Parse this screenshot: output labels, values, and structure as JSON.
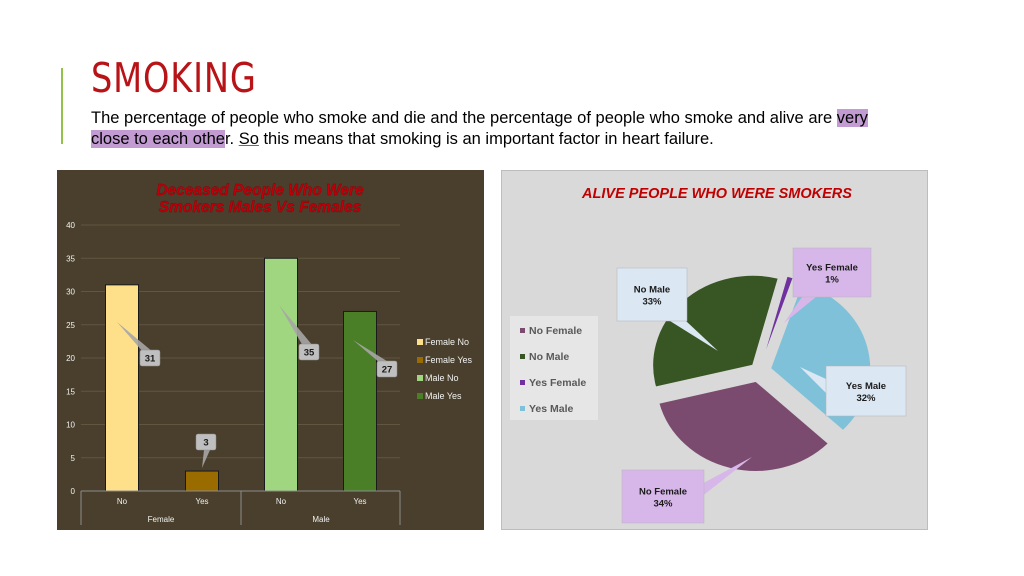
{
  "slide": {
    "title": "SMOKING",
    "body_part1": "The percentage of people who smoke and die and the percentage of people who smoke and alive are ",
    "body_highlight": "very close to each othe",
    "body_part2": "r. ",
    "body_underlined": "So",
    "body_part3": " this means that smoking is an important factor in heart failure.",
    "colors": {
      "title": "#b81418",
      "accent_bar": "#92c24a",
      "highlight": "#c39bd3"
    }
  },
  "chart_data": [
    {
      "type": "bar",
      "title_line1": "Deceased People Who Were",
      "title_line2": "Smokers Males Vs Females",
      "groups": [
        "Female",
        "Male"
      ],
      "categories": [
        "No",
        "Yes",
        "No",
        "Yes"
      ],
      "series": [
        {
          "name": "Female No",
          "group": "Female",
          "category": "No",
          "value": 31,
          "label": "31",
          "color": "#ffe08a"
        },
        {
          "name": "Female Yes",
          "group": "Female",
          "category": "Yes",
          "value": 3,
          "label": "3",
          "color": "#9a6c00"
        },
        {
          "name": "Male No",
          "group": "Male",
          "category": "No",
          "value": 35,
          "label": "35",
          "color": "#9fd67f"
        },
        {
          "name": "Male Yes",
          "group": "Male",
          "category": "Yes",
          "value": 27,
          "label": "27",
          "color": "#4a7f28"
        }
      ],
      "yticks": [
        "0",
        "5",
        "10",
        "15",
        "20",
        "25",
        "30",
        "35",
        "40"
      ],
      "ylim": [
        0,
        40
      ],
      "legend_position": "right",
      "grid": true,
      "colors": {
        "background": "#493f2c",
        "title": "#c0000a"
      }
    },
    {
      "type": "pie",
      "title": "ALIVE  PEOPLE WHO WERE SMOKERS",
      "slices": [
        {
          "name": "No Female",
          "value": 34,
          "label_name": "No Female",
          "label_pct": "34%",
          "color": "#7a4b6e"
        },
        {
          "name": "No Male",
          "value": 33,
          "label_name": "No Male",
          "label_pct": "33%",
          "color": "#375623"
        },
        {
          "name": "Yes Female",
          "value": 1,
          "label_name": "Yes Female",
          "label_pct": "1%",
          "color": "#7030a0"
        },
        {
          "name": "Yes Male",
          "value": 32,
          "label_name": "Yes Male",
          "label_pct": "32%",
          "color": "#7fc1d9"
        }
      ],
      "legend_position": "left",
      "colors": {
        "background": "#d9d9d9",
        "title": "#c00000"
      }
    }
  ]
}
